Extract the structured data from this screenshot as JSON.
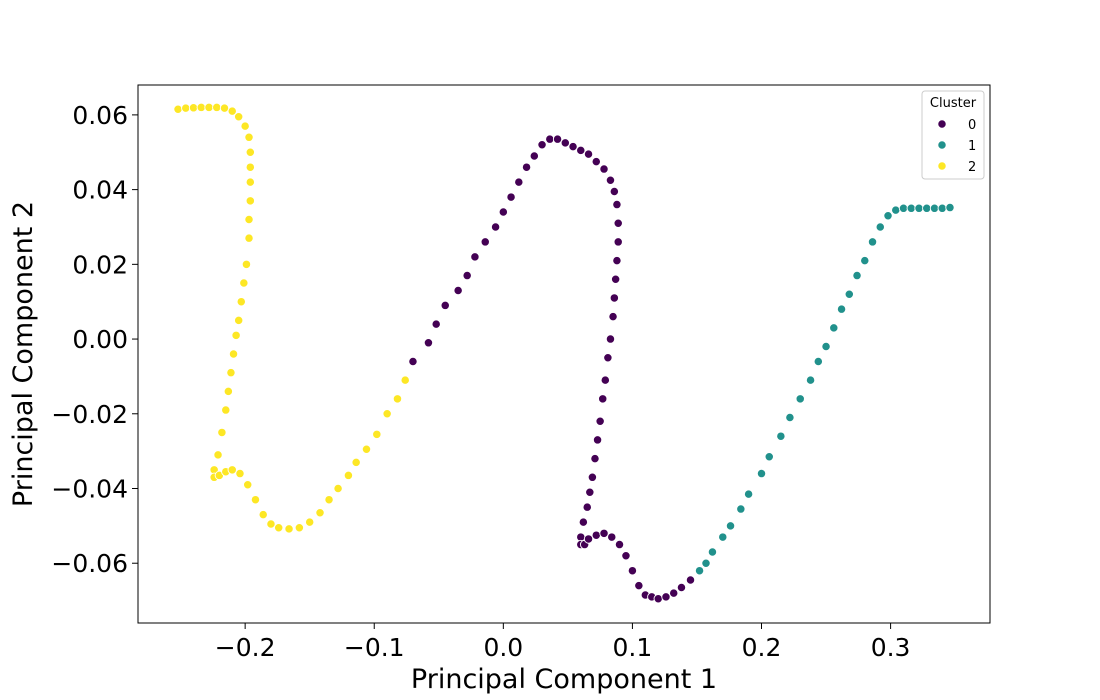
{
  "chart_data": {
    "type": "scatter",
    "title": "",
    "xlabel": "Principal Component 1",
    "ylabel": "Principal Component 2",
    "xlim": [
      -0.283,
      0.377
    ],
    "ylim": [
      -0.076,
      0.068
    ],
    "x_ticks": [
      {
        "value": -0.2,
        "label": "−0.2"
      },
      {
        "value": -0.1,
        "label": "−0.1"
      },
      {
        "value": 0.0,
        "label": "0.0"
      },
      {
        "value": 0.1,
        "label": "0.1"
      },
      {
        "value": 0.2,
        "label": "0.2"
      },
      {
        "value": 0.3,
        "label": "0.3"
      }
    ],
    "y_ticks": [
      {
        "value": -0.06,
        "label": "−0.06"
      },
      {
        "value": -0.04,
        "label": "−0.04"
      },
      {
        "value": -0.02,
        "label": "−0.02"
      },
      {
        "value": 0.0,
        "label": "0.00"
      },
      {
        "value": 0.02,
        "label": "0.02"
      },
      {
        "value": 0.04,
        "label": "0.04"
      },
      {
        "value": 0.06,
        "label": "0.06"
      }
    ],
    "grid": false,
    "legend": {
      "title": "Cluster",
      "placement": "top-right"
    },
    "series": [
      {
        "name": "0",
        "color": "#440154",
        "points": [
          [
            -0.07,
            -0.006
          ],
          [
            -0.058,
            -0.001
          ],
          [
            -0.052,
            0.004
          ],
          [
            -0.045,
            0.009
          ],
          [
            -0.035,
            0.013
          ],
          [
            -0.028,
            0.017
          ],
          [
            -0.022,
            0.022
          ],
          [
            -0.014,
            0.026
          ],
          [
            -0.006,
            0.03
          ],
          [
            0.0,
            0.034
          ],
          [
            0.006,
            0.038
          ],
          [
            0.012,
            0.042
          ],
          [
            0.018,
            0.046
          ],
          [
            0.024,
            0.049
          ],
          [
            0.03,
            0.052
          ],
          [
            0.036,
            0.0535
          ],
          [
            0.042,
            0.0535
          ],
          [
            0.048,
            0.0525
          ],
          [
            0.054,
            0.0515
          ],
          [
            0.06,
            0.0505
          ],
          [
            0.066,
            0.0495
          ],
          [
            0.072,
            0.0475
          ],
          [
            0.078,
            0.0455
          ],
          [
            0.083,
            0.0425
          ],
          [
            0.086,
            0.0395
          ],
          [
            0.088,
            0.036
          ],
          [
            0.089,
            0.031
          ],
          [
            0.089,
            0.026
          ],
          [
            0.088,
            0.021
          ],
          [
            0.087,
            0.016
          ],
          [
            0.086,
            0.011
          ],
          [
            0.085,
            0.006
          ],
          [
            0.083,
            0.0
          ],
          [
            0.081,
            -0.005
          ],
          [
            0.079,
            -0.011
          ],
          [
            0.077,
            -0.016
          ],
          [
            0.075,
            -0.022
          ],
          [
            0.073,
            -0.027
          ],
          [
            0.071,
            -0.032
          ],
          [
            0.069,
            -0.037
          ],
          [
            0.067,
            -0.041
          ],
          [
            0.065,
            -0.045
          ],
          [
            0.062,
            -0.049
          ],
          [
            0.06,
            -0.053
          ],
          [
            0.06,
            -0.055
          ],
          [
            0.063,
            -0.055
          ],
          [
            0.066,
            -0.0535
          ],
          [
            0.072,
            -0.0525
          ],
          [
            0.078,
            -0.052
          ],
          [
            0.084,
            -0.053
          ],
          [
            0.09,
            -0.055
          ],
          [
            0.095,
            -0.058
          ],
          [
            0.1,
            -0.062
          ],
          [
            0.105,
            -0.066
          ],
          [
            0.11,
            -0.0685
          ],
          [
            0.115,
            -0.069
          ],
          [
            0.12,
            -0.0695
          ],
          [
            0.126,
            -0.069
          ],
          [
            0.132,
            -0.068
          ],
          [
            0.138,
            -0.0665
          ],
          [
            0.145,
            -0.0645
          ]
        ]
      },
      {
        "name": "1",
        "color": "#21918c",
        "points": [
          [
            0.152,
            -0.062
          ],
          [
            0.157,
            -0.06
          ],
          [
            0.162,
            -0.057
          ],
          [
            0.17,
            -0.053
          ],
          [
            0.176,
            -0.05
          ],
          [
            0.184,
            -0.0455
          ],
          [
            0.19,
            -0.0415
          ],
          [
            0.2,
            -0.036
          ],
          [
            0.206,
            -0.0315
          ],
          [
            0.215,
            -0.026
          ],
          [
            0.222,
            -0.021
          ],
          [
            0.23,
            -0.016
          ],
          [
            0.238,
            -0.011
          ],
          [
            0.244,
            -0.006
          ],
          [
            0.25,
            -0.002
          ],
          [
            0.256,
            0.003
          ],
          [
            0.262,
            0.008
          ],
          [
            0.268,
            0.012
          ],
          [
            0.274,
            0.017
          ],
          [
            0.28,
            0.021
          ],
          [
            0.286,
            0.026
          ],
          [
            0.292,
            0.03
          ],
          [
            0.298,
            0.033
          ],
          [
            0.304,
            0.0345
          ],
          [
            0.31,
            0.035
          ],
          [
            0.316,
            0.035
          ],
          [
            0.322,
            0.035
          ],
          [
            0.328,
            0.035
          ],
          [
            0.334,
            0.035
          ],
          [
            0.34,
            0.035
          ],
          [
            0.346,
            0.0352
          ]
        ]
      },
      {
        "name": "2",
        "color": "#fde725",
        "points": [
          [
            -0.252,
            0.0615
          ],
          [
            -0.246,
            0.0618
          ],
          [
            -0.24,
            0.0619
          ],
          [
            -0.234,
            0.062
          ],
          [
            -0.228,
            0.062
          ],
          [
            -0.222,
            0.062
          ],
          [
            -0.216,
            0.0618
          ],
          [
            -0.21,
            0.061
          ],
          [
            -0.205,
            0.0595
          ],
          [
            -0.2,
            0.057
          ],
          [
            -0.197,
            0.054
          ],
          [
            -0.196,
            0.05
          ],
          [
            -0.196,
            0.046
          ],
          [
            -0.196,
            0.042
          ],
          [
            -0.196,
            0.037
          ],
          [
            -0.197,
            0.032
          ],
          [
            -0.197,
            0.027
          ],
          [
            -0.199,
            0.02
          ],
          [
            -0.201,
            0.015
          ],
          [
            -0.203,
            0.01
          ],
          [
            -0.205,
            0.005
          ],
          [
            -0.207,
            0.001
          ],
          [
            -0.209,
            -0.004
          ],
          [
            -0.211,
            -0.009
          ],
          [
            -0.213,
            -0.014
          ],
          [
            -0.215,
            -0.019
          ],
          [
            -0.218,
            -0.025
          ],
          [
            -0.221,
            -0.031
          ],
          [
            -0.224,
            -0.035
          ],
          [
            -0.224,
            -0.037
          ],
          [
            -0.22,
            -0.0365
          ],
          [
            -0.215,
            -0.0355
          ],
          [
            -0.21,
            -0.035
          ],
          [
            -0.204,
            -0.036
          ],
          [
            -0.198,
            -0.039
          ],
          [
            -0.192,
            -0.043
          ],
          [
            -0.186,
            -0.047
          ],
          [
            -0.18,
            -0.0495
          ],
          [
            -0.174,
            -0.0505
          ],
          [
            -0.166,
            -0.0508
          ],
          [
            -0.158,
            -0.0505
          ],
          [
            -0.15,
            -0.049
          ],
          [
            -0.142,
            -0.0465
          ],
          [
            -0.135,
            -0.043
          ],
          [
            -0.128,
            -0.04
          ],
          [
            -0.12,
            -0.0365
          ],
          [
            -0.114,
            -0.033
          ],
          [
            -0.106,
            -0.0295
          ],
          [
            -0.098,
            -0.0255
          ],
          [
            -0.09,
            -0.02
          ],
          [
            -0.082,
            -0.016
          ],
          [
            -0.076,
            -0.011
          ]
        ]
      }
    ]
  }
}
